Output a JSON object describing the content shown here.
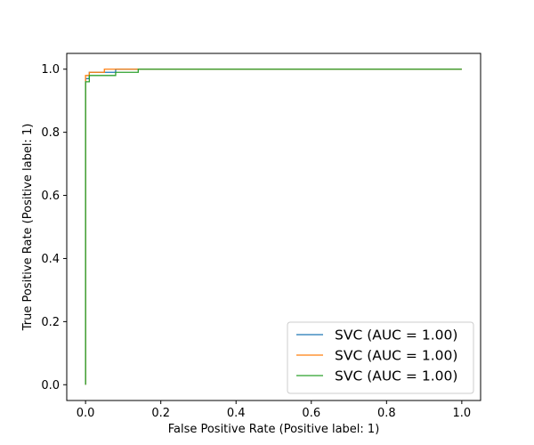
{
  "chart_data": {
    "type": "line",
    "title": "",
    "xlabel": "False Positive Rate (Positive label: 1)",
    "ylabel": "True Positive Rate (Positive label: 1)",
    "xlim": [
      -0.05,
      1.05
    ],
    "ylim": [
      -0.05,
      1.05
    ],
    "xticks": [
      0.0,
      0.2,
      0.4,
      0.6,
      0.8,
      1.0
    ],
    "yticks": [
      0.0,
      0.2,
      0.4,
      0.6,
      0.8,
      1.0
    ],
    "xtick_labels": [
      "0.0",
      "0.2",
      "0.4",
      "0.6",
      "0.8",
      "1.0"
    ],
    "ytick_labels": [
      "0.0",
      "0.2",
      "0.4",
      "0.6",
      "0.8",
      "1.0"
    ],
    "grid": false,
    "legend_position": "lower-right",
    "series": [
      {
        "name": "SVC (AUC = 1.00)",
        "color": "#1f77b4",
        "x": [
          0.0,
          0.0,
          0.01,
          0.01,
          0.08,
          0.08,
          1.0
        ],
        "y": [
          0.0,
          0.97,
          0.97,
          0.99,
          0.99,
          1.0,
          1.0
        ]
      },
      {
        "name": "SVC (AUC = 1.00)",
        "color": "#ff7f0e",
        "x": [
          0.0,
          0.0,
          0.01,
          0.01,
          0.05,
          0.05,
          1.0
        ],
        "y": [
          0.0,
          0.98,
          0.98,
          0.99,
          0.99,
          1.0,
          1.0
        ]
      },
      {
        "name": "SVC (AUC = 1.00)",
        "color": "#2ca02c",
        "x": [
          0.0,
          0.0,
          0.01,
          0.01,
          0.08,
          0.08,
          0.14,
          0.14,
          1.0
        ],
        "y": [
          0.0,
          0.96,
          0.96,
          0.98,
          0.98,
          0.99,
          0.99,
          1.0,
          1.0
        ]
      }
    ]
  }
}
